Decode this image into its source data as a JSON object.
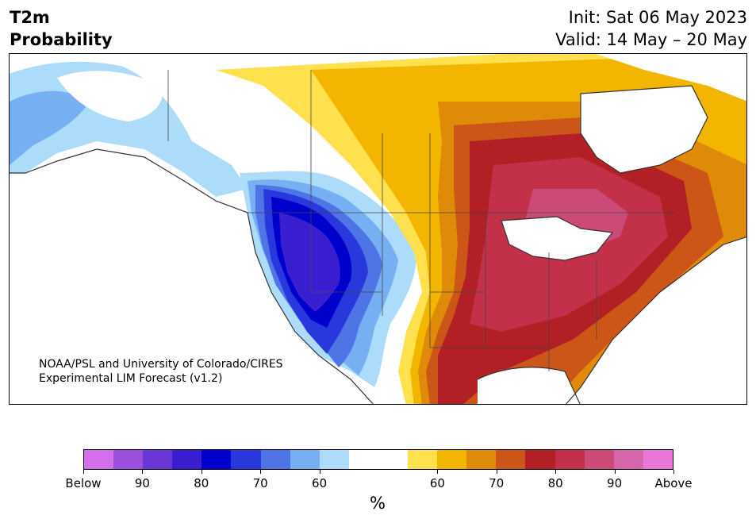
{
  "title": {
    "line1": "T2m",
    "line2": "Probability"
  },
  "init": {
    "line1": "Init: Sat 06 May 2023",
    "line2": "Valid: 14 May – 20 May"
  },
  "credit": {
    "line1": "NOAA/PSL and University of Colorado/CIRES",
    "line2": "Experimental LIM Forecast (v1.2)"
  },
  "colorbar": {
    "unit": "%",
    "colors": [
      "#d36fe8",
      "#9b50dd",
      "#6a36d6",
      "#3a1fd2",
      "#0000cd",
      "#2838dc",
      "#4f74e6",
      "#77b0f2",
      "#addcfa",
      "#ffffff",
      "#ffffff",
      "#ffe14d",
      "#f2b600",
      "#e08a0a",
      "#cc5518",
      "#b21f25",
      "#c2304a",
      "#cc4a78",
      "#d866aa",
      "#e877d8"
    ],
    "ticks": [
      "Below",
      "90",
      "80",
      "70",
      "60",
      "60",
      "70",
      "80",
      "90",
      "Above"
    ]
  },
  "map": {
    "region": "North America",
    "palette": {
      "lightblue": "#addcfa",
      "blue1": "#77b0f2",
      "blue2": "#4f74e6",
      "blue3": "#2838dc",
      "blue4": "#0000cd",
      "blue5": "#3a1fd2",
      "yellow": "#ffe14d",
      "gold": "#f2b600",
      "orange": "#e08a0a",
      "rust": "#cc5518",
      "red": "#b21f25",
      "crimson": "#c2304a",
      "pink": "#cc4a78"
    }
  }
}
